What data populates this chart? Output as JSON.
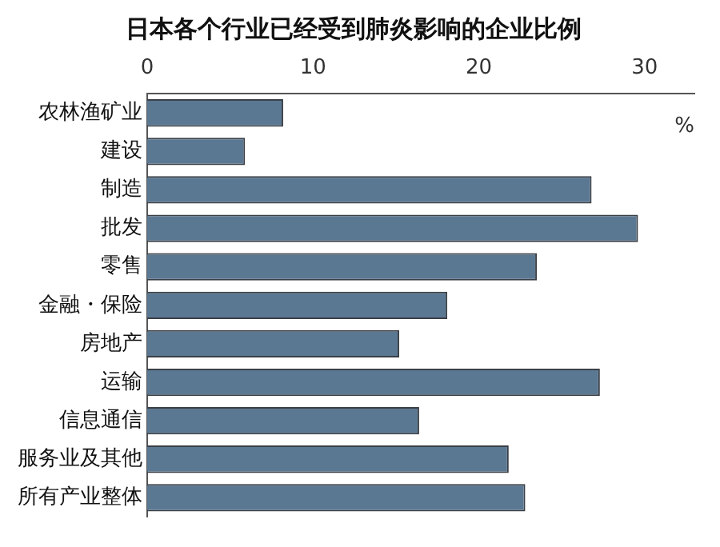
{
  "chart_data": {
    "type": "bar",
    "orientation": "horizontal",
    "title": "日本各个行业已经受到肺炎影响的企业比例",
    "xlabel": "%",
    "categories": [
      "农林渔矿业",
      "建设",
      "制造",
      "批发",
      "零售",
      "金融・保险",
      "房地产",
      "运输",
      "信息通信",
      "服务业及其他",
      "所有产业整体"
    ],
    "values": [
      8.2,
      5.9,
      26.8,
      29.6,
      23.5,
      18.1,
      15.2,
      27.3,
      16.4,
      21.8,
      22.8
    ],
    "color": "#5b7893",
    "xlim": [
      0,
      33
    ],
    "xticks": [
      0,
      10,
      20,
      30
    ],
    "grid": false,
    "legend": false
  }
}
